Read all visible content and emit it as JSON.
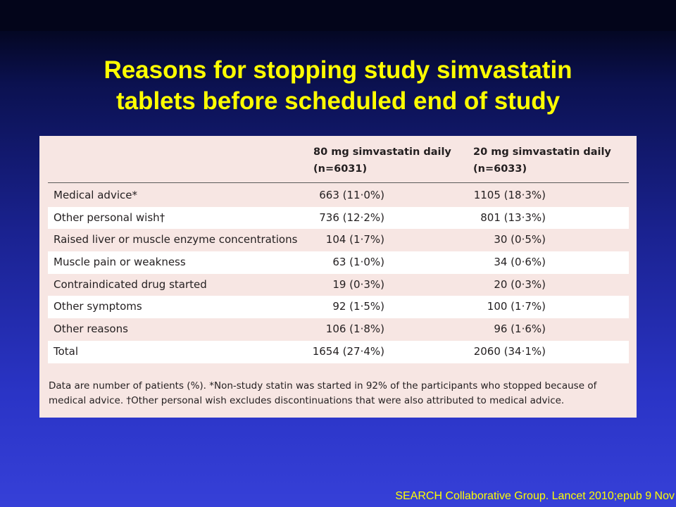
{
  "title": {
    "line1": "Reasons for stopping study simvastatin",
    "line2": "tablets before scheduled end of study"
  },
  "table": {
    "columns": [
      {
        "line1": "80 mg simvastatin daily",
        "line2": "(n=6031)"
      },
      {
        "line1": "20 mg simvastatin daily",
        "line2": "(n=6033)"
      }
    ],
    "rows": [
      {
        "label": "Medical advice*",
        "col1": "663 (11·0%)",
        "col2": "1105 (18·3%)"
      },
      {
        "label": "Other personal wish†",
        "col1": "736 (12·2%)",
        "col2": "801 (13·3%)"
      },
      {
        "label": "Raised liver or muscle enzyme concentrations",
        "col1": "104 (1·7%)",
        "col2": "30 (0·5%)"
      },
      {
        "label": "Muscle pain or weakness",
        "col1": "63 (1·0%)",
        "col2": "34 (0·6%)"
      },
      {
        "label": "Contraindicated drug started",
        "col1": "19 (0·3%)",
        "col2": "20 (0·3%)"
      },
      {
        "label": "Other symptoms",
        "col1": "92 (1·5%)",
        "col2": "100 (1·7%)"
      },
      {
        "label": "Other reasons",
        "col1": "106 (1·8%)",
        "col2": "96 (1·6%)"
      },
      {
        "label": "Total",
        "col1": "1654 (27·4%)",
        "col2": "2060 (34·1%)"
      }
    ]
  },
  "footnote": {
    "line1": "Data are number of patients (%). *Non-study statin was started in 92% of the participants who stopped because of",
    "line2": "medical advice. †Other personal wish excludes discontinuations that were also attributed to medical advice."
  },
  "citation": "SEARCH Collaborative Group. Lancet 2010;epub 9 Nov",
  "colors": {
    "title": "#ffff00",
    "background_top": "#020318",
    "background_bottom": "#3640d8",
    "panel": "#f7e6e3",
    "row_alt": "#ffffff"
  }
}
